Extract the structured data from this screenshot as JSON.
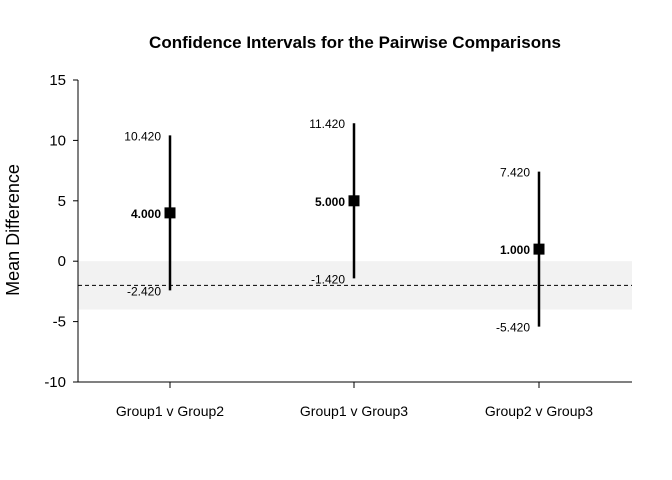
{
  "chart_data": {
    "type": "scatter",
    "title": "Confidence Intervals for the Pairwise Comparisons",
    "xlabel": "",
    "ylabel": "Mean Difference",
    "ylim": [
      -10,
      15
    ],
    "yticks": [
      "-10",
      "-5",
      "0",
      "5",
      "10",
      "15"
    ],
    "categories": [
      "Group1 v Group2",
      "Group1 v Group3",
      "Group2 v Group3"
    ],
    "estimates": [
      4.0,
      5.0,
      1.0
    ],
    "lower": [
      -2.42,
      -1.42,
      -5.42
    ],
    "upper": [
      10.42,
      11.42,
      7.42
    ],
    "estimate_labels": [
      "4.000",
      "5.000",
      "1.000"
    ],
    "lower_labels": [
      "-2.420",
      "-1.420",
      "-5.420"
    ],
    "upper_labels": [
      "10.420",
      "11.420",
      "7.420"
    ],
    "reference_line": -2,
    "shaded_band": [
      -4,
      0
    ],
    "grid": false,
    "colors": {
      "band": "#f2f2f2",
      "marks": "#000000"
    }
  }
}
